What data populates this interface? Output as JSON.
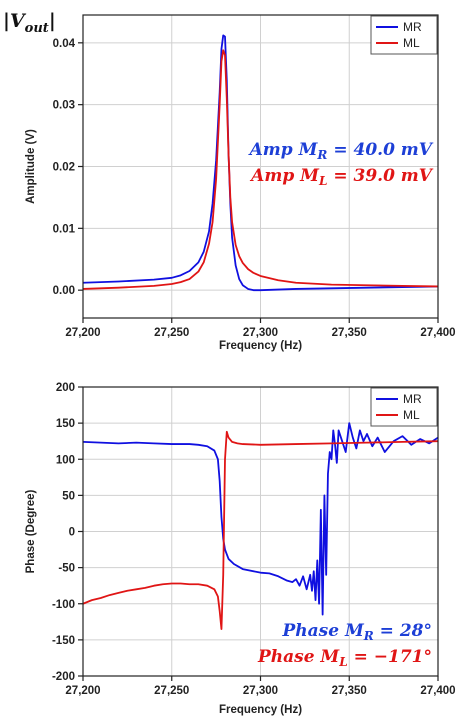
{
  "corner_title": "|Vout|",
  "chart_data": [
    {
      "type": "line",
      "xlabel": "Frequency (Hz)",
      "ylabel": "Amplitude (V)",
      "xlim": [
        27200,
        27400
      ],
      "ylim": [
        -0.0045,
        0.0445
      ],
      "xticks": [
        27200,
        27250,
        27300,
        27350,
        27400
      ],
      "xtick_labels": [
        "27,200",
        "27,250",
        "27,300",
        "27,350",
        "27,400"
      ],
      "yticks": [
        0,
        0.01,
        0.02,
        0.03,
        0.04
      ],
      "ytick_labels": [
        "0.00",
        "0.01",
        "0.02",
        "0.03",
        "0.04"
      ],
      "grid": true,
      "legend_position": "top-right",
      "series": [
        {
          "name": "MR",
          "color": "#1010e0",
          "x": [
            27200,
            27220,
            27240,
            27250,
            27255,
            27260,
            27265,
            27268,
            27271,
            27273,
            27275,
            27277,
            27278,
            27279,
            27280,
            27281,
            27282,
            27283,
            27284,
            27286,
            27288,
            27290,
            27293,
            27296,
            27300,
            27310,
            27320,
            27340,
            27360,
            27380,
            27400
          ],
          "y": [
            0.0012,
            0.0014,
            0.0017,
            0.002,
            0.0024,
            0.0031,
            0.0045,
            0.0062,
            0.0095,
            0.014,
            0.021,
            0.032,
            0.039,
            0.0412,
            0.041,
            0.034,
            0.022,
            0.014,
            0.0085,
            0.004,
            0.0018,
            0.0008,
            0.0002,
            0.0,
            0.0,
            0.0001,
            0.0002,
            0.0003,
            0.0004,
            0.0005,
            0.0006
          ]
        },
        {
          "name": "ML",
          "color": "#e01515",
          "x": [
            27200,
            27220,
            27240,
            27250,
            27255,
            27260,
            27265,
            27268,
            27271,
            27273,
            27275,
            27277,
            27278,
            27279,
            27280,
            27281,
            27282,
            27283,
            27284,
            27286,
            27288,
            27290,
            27293,
            27296,
            27300,
            27310,
            27320,
            27340,
            27360,
            27380,
            27400
          ],
          "y": [
            0.0002,
            0.0004,
            0.0007,
            0.001,
            0.0013,
            0.0018,
            0.003,
            0.0045,
            0.0075,
            0.011,
            0.018,
            0.03,
            0.037,
            0.0388,
            0.038,
            0.031,
            0.022,
            0.015,
            0.011,
            0.0073,
            0.0055,
            0.0044,
            0.0034,
            0.0028,
            0.0023,
            0.0016,
            0.0012,
            0.0009,
            0.0008,
            0.0007,
            0.0006
          ]
        }
      ],
      "annotations": [
        {
          "text": "Amp M_R = 40.0 mV",
          "color": "#1d3fd6"
        },
        {
          "text": "Amp M_L = 39.0 mV",
          "color": "#e01515"
        }
      ]
    },
    {
      "type": "line",
      "xlabel": "Frequency (Hz)",
      "ylabel": "Phase (Degree)",
      "xlim": [
        27200,
        27400
      ],
      "ylim": [
        -200,
        200
      ],
      "xticks": [
        27200,
        27250,
        27300,
        27350,
        27400
      ],
      "xtick_labels": [
        "27,200",
        "27,250",
        "27,300",
        "27,350",
        "27,400"
      ],
      "yticks": [
        -200,
        -150,
        -100,
        -50,
        0,
        50,
        100,
        150,
        200
      ],
      "ytick_labels": [
        "-200",
        "-150",
        "-100",
        "-50",
        "0",
        "50",
        "100",
        "150",
        "200"
      ],
      "grid": true,
      "legend_position": "top-right",
      "series": [
        {
          "name": "MR",
          "color": "#1010e0",
          "x": [
            27200,
            27210,
            27220,
            27230,
            27240,
            27250,
            27260,
            27265,
            27270,
            27274,
            27276,
            27277,
            27278,
            27279,
            27280,
            27282,
            27285,
            27290,
            27300,
            27305,
            27310,
            27315,
            27318,
            27320,
            27322,
            27324,
            27326,
            27328,
            27329,
            27330,
            27331,
            27332,
            27333,
            27334,
            27335,
            27336,
            27337,
            27338,
            27339,
            27340,
            27341,
            27342,
            27343,
            27344,
            27346,
            27348,
            27350,
            27352,
            27354,
            27356,
            27358,
            27360,
            27363,
            27366,
            27370,
            27375,
            27380,
            27385,
            27390,
            27395,
            27400
          ],
          "y": [
            124,
            123,
            122,
            123,
            122,
            121,
            121,
            120,
            118,
            112,
            100,
            70,
            20,
            -10,
            -25,
            -38,
            -45,
            -52,
            -57,
            -58,
            -62,
            -68,
            -70,
            -66,
            -75,
            -62,
            -80,
            -60,
            -82,
            -55,
            -95,
            -40,
            -100,
            30,
            -115,
            50,
            -60,
            80,
            110,
            100,
            140,
            120,
            95,
            140,
            125,
            110,
            150,
            130,
            115,
            140,
            125,
            135,
            118,
            130,
            110,
            125,
            132,
            120,
            128,
            122,
            130
          ]
        },
        {
          "name": "ML",
          "color": "#e01515",
          "x": [
            27200,
            27205,
            27210,
            27215,
            27220,
            27225,
            27230,
            27235,
            27240,
            27245,
            27250,
            27255,
            27260,
            27265,
            27270,
            27274,
            27276,
            27277,
            27278,
            27279,
            27280,
            27281,
            27282,
            27284,
            27287,
            27290,
            27300,
            27320,
            27340,
            27360,
            27380,
            27400
          ],
          "y": [
            -100,
            -95,
            -92,
            -88,
            -85,
            -82,
            -80,
            -78,
            -75,
            -73,
            -72,
            -72,
            -73,
            -73,
            -75,
            -80,
            -90,
            -110,
            -135,
            -60,
            100,
            138,
            130,
            124,
            122,
            121,
            120,
            121,
            122,
            123,
            124,
            125
          ]
        }
      ],
      "annotations": [
        {
          "text": "Phase M_R = 28°",
          "color": "#1d3fd6"
        },
        {
          "text": "Phase M_L = −171°",
          "color": "#e01515"
        }
      ]
    }
  ]
}
